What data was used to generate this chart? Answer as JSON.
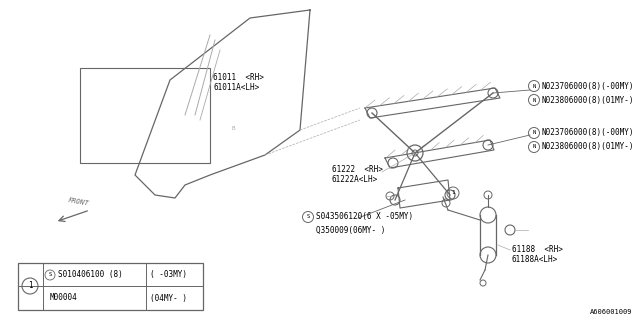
{
  "bg_color": "#ffffff",
  "line_color": "#aaaaaa",
  "dark_line": "#666666",
  "diagram_id": "A606001009",
  "label_61011": "61011  <RH>\n61011A<LH>",
  "label_61222": "61222  <RH>\n61222A<LH>",
  "label_N1a": "N023706000(8)(-00MY)",
  "label_N1b": "N023806000(8)(01MY-)",
  "label_N2a": "N023706000(8)(-00MY)",
  "label_N2b": "N023806000(8)(01MY-)",
  "label_S1": "S043506120(6 X -05MY)",
  "label_Q1": "Q350009(06MY- )",
  "label_61188": "61188  <RH>\n61188A<LH>",
  "legend_S": "S010406100 (8)",
  "legend_M": "M00004",
  "legend_c1": "( -03MY)",
  "legend_c2": "(04MY- )"
}
